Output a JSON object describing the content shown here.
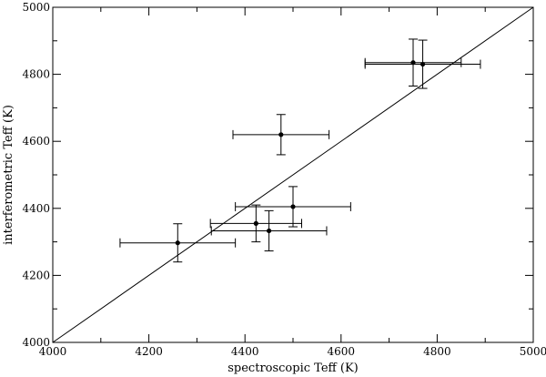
{
  "chart_data": {
    "type": "scatter",
    "xlabel": "spectroscopic Teff (K)",
    "ylabel": "interferometric Teff (K)",
    "xlim": [
      4000,
      5000
    ],
    "ylim": [
      4000,
      5000
    ],
    "x_ticks": [
      4000,
      4200,
      4400,
      4600,
      4800,
      5000
    ],
    "y_ticks": [
      4000,
      4200,
      4400,
      4600,
      4800,
      5000
    ],
    "grid": false,
    "reference_line": {
      "from": [
        4000,
        4000
      ],
      "to": [
        5000,
        5000
      ]
    },
    "points": [
      {
        "x": 4260,
        "y": 4297,
        "xerr": 120,
        "yerr": 57
      },
      {
        "x": 4423,
        "y": 4355,
        "xerr": 95,
        "yerr": 55
      },
      {
        "x": 4450,
        "y": 4333,
        "xerr": 120,
        "yerr": 60
      },
      {
        "x": 4500,
        "y": 4405,
        "xerr": 120,
        "yerr": 60
      },
      {
        "x": 4475,
        "y": 4620,
        "xerr": 100,
        "yerr": 60
      },
      {
        "x": 4750,
        "y": 4835,
        "xerr": 100,
        "yerr": 70
      },
      {
        "x": 4770,
        "y": 4830,
        "xerr": 120,
        "yerr": 72
      }
    ]
  }
}
